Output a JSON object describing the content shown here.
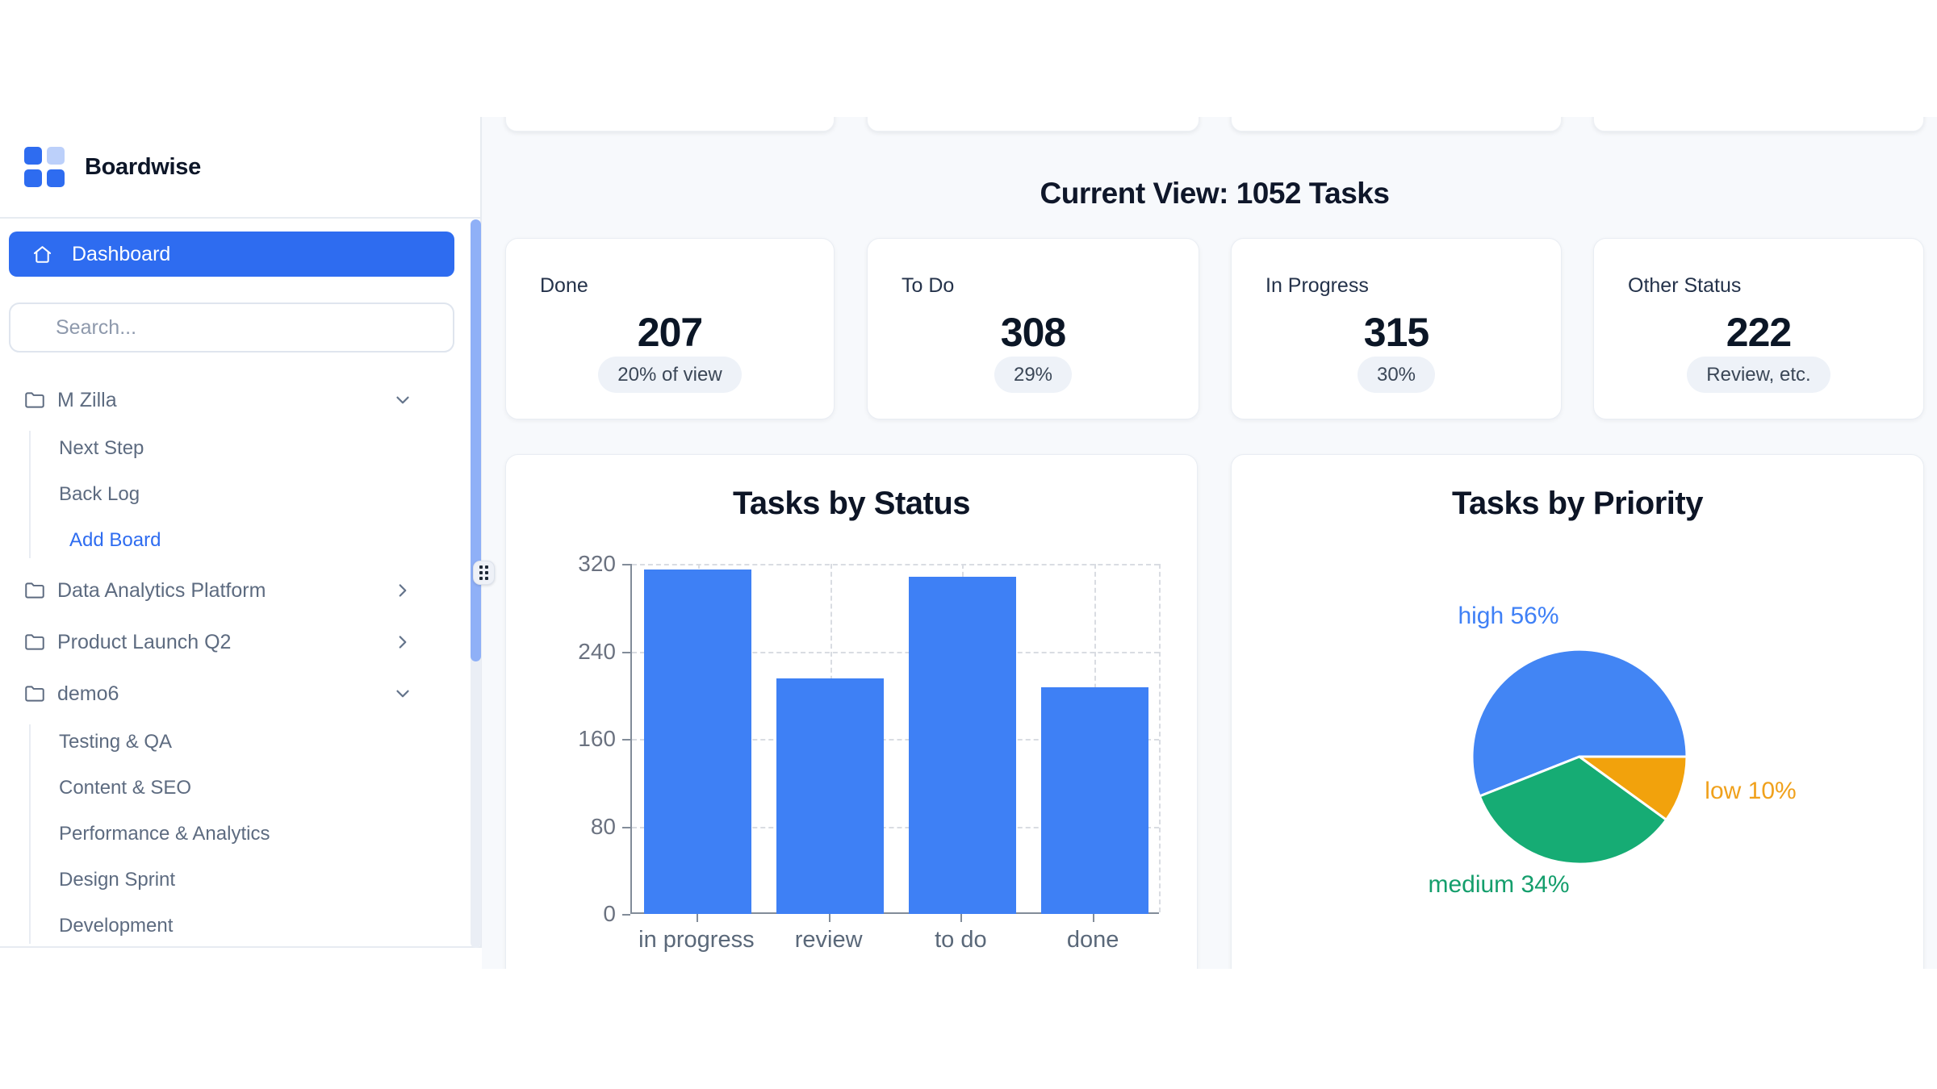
{
  "app": {
    "name": "Boardwise"
  },
  "sidebar": {
    "logo_text": "Boardwise",
    "dashboard_label": "Dashboard",
    "search_placeholder": "Search...",
    "groups": [
      {
        "label": "M Zilla",
        "state": "expanded",
        "children": [
          "Next Step",
          "Back Log"
        ],
        "action": "Add Board"
      },
      {
        "label": "Data Analytics Platform",
        "state": "collapsed",
        "children": []
      },
      {
        "label": "Product Launch Q2",
        "state": "collapsed",
        "children": []
      },
      {
        "label": "demo6",
        "state": "expanded",
        "children": [
          "Testing & QA",
          "Content & SEO",
          "Performance & Analytics",
          "Design Sprint",
          "Development"
        ]
      }
    ]
  },
  "main": {
    "view_title": "Current View: 1052 Tasks",
    "stat_cards": [
      {
        "label": "Done",
        "value": "207",
        "badge": "20% of view"
      },
      {
        "label": "To Do",
        "value": "308",
        "badge": "29%"
      },
      {
        "label": "In Progress",
        "value": "315",
        "badge": "30%"
      },
      {
        "label": "Other Status",
        "value": "222",
        "badge": "Review, etc."
      }
    ]
  },
  "colors": {
    "primary_blue": "#2e6cf0",
    "logo_light_blue": "#bcd0fa",
    "bar_blue": "#3e80f5",
    "pie_blue": "#4285f4",
    "pie_green": "#16ac74",
    "pie_orange": "#f2a20c",
    "badge_bg": "#eef2f8",
    "scrollbar_thumb": "#8fb0f7"
  },
  "chart_data": [
    {
      "type": "bar",
      "title": "Tasks by Status",
      "categories": [
        "in progress",
        "review",
        "to do",
        "done"
      ],
      "values": [
        315,
        215,
        308,
        207
      ],
      "xlabel": "",
      "ylabel": "",
      "ylim": [
        0,
        320
      ],
      "yticks": [
        0,
        80,
        160,
        240,
        320
      ],
      "grid": true,
      "legend": false,
      "bar_color": "#3e80f5"
    },
    {
      "type": "pie",
      "title": "Tasks by Priority",
      "slices": [
        {
          "label": "high",
          "pct": 56,
          "color": "#4285f4",
          "label_color": "#3f80f6"
        },
        {
          "label": "medium",
          "pct": 34,
          "color": "#16ac74",
          "label_color": "#149e6c"
        },
        {
          "label": "low",
          "pct": 10,
          "color": "#f2a20c",
          "label_color": "#f0a11c"
        }
      ],
      "start_angle_deg": 0,
      "direction": "counterclockwise",
      "labels_outside": true
    }
  ]
}
